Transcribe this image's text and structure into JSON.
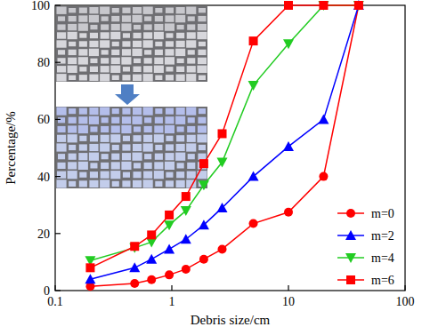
{
  "chart_data": {
    "type": "line",
    "x_label": "Debris size/cm",
    "y_label": "Percentage/%",
    "x": [
      0.2,
      0.48,
      0.67,
      0.95,
      1.32,
      1.88,
      2.7,
      5,
      10,
      20,
      40
    ],
    "series": [
      {
        "name": "m=0",
        "color": "#ff0000",
        "marker": "circle",
        "line_style": "solid",
        "values": [
          1.5,
          2.5,
          3.8,
          5.5,
          7.5,
          11,
          14.5,
          23.5,
          27.5,
          40,
          100
        ]
      },
      {
        "name": "m=2",
        "color": "#0000ff",
        "marker": "triangle-up",
        "line_style": "solid",
        "values": [
          4,
          8,
          11,
          14.5,
          18,
          23,
          29,
          40,
          50.5,
          60,
          100
        ]
      },
      {
        "name": "m=4",
        "color": "#22cc22",
        "marker": "triangle-down",
        "line_style": "solid",
        "values": [
          10.5,
          15,
          17,
          23,
          28,
          37,
          45,
          72,
          86.5,
          100,
          100
        ]
      },
      {
        "name": "m=6",
        "color": "#ff0000",
        "marker": "square",
        "line_style": "solid",
        "values": [
          8,
          15.5,
          19.5,
          26.5,
          33,
          44.5,
          55,
          87.5,
          100,
          100,
          100
        ]
      }
    ],
    "xlim": [
      0.1,
      100
    ],
    "ylim": [
      0,
      100
    ],
    "xticks": [
      0.1,
      1,
      10,
      100
    ],
    "yticks": [
      0,
      20,
      40,
      60,
      80,
      100
    ],
    "log": "x",
    "grid": false,
    "legend": "bottom right"
  }
}
